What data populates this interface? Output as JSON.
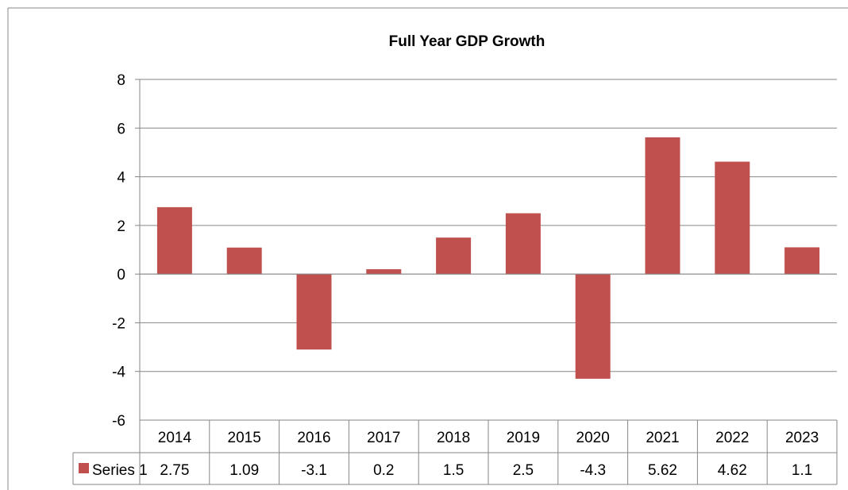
{
  "chart_data": {
    "type": "bar",
    "title": "Full Year GDP Growth",
    "xlabel": "",
    "ylabel": "",
    "ylim": [
      -6,
      8
    ],
    "yticks": [
      "8",
      "6",
      "4",
      "2",
      "0",
      "-2",
      "-4",
      "-6"
    ],
    "categories": [
      "2014",
      "2015",
      "2016",
      "2017",
      "2018",
      "2019",
      "2020",
      "2021",
      "2022",
      "2023"
    ],
    "series": [
      {
        "name": "Series 1",
        "values": [
          2.75,
          1.09,
          -3.1,
          0.2,
          1.5,
          2.5,
          -4.3,
          5.62,
          4.62,
          1.1
        ],
        "value_labels": [
          "2.75",
          "1.09",
          "-3.1",
          "0.2",
          "1.5",
          "2.5",
          "-4.3",
          "5.62",
          "4.62",
          "1.1"
        ],
        "color": "#C0504D"
      }
    ],
    "grid": true,
    "legend": "data-table",
    "data_table": true
  }
}
